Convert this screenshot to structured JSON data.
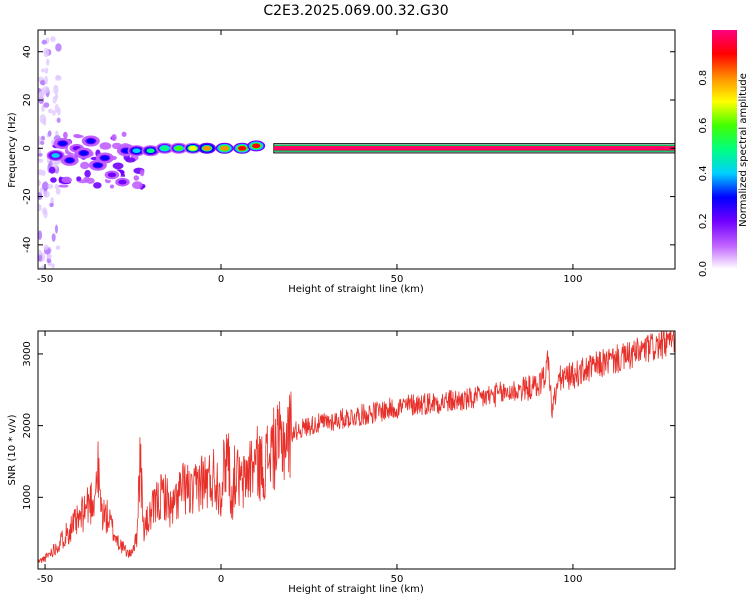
{
  "title": "C2E3.2025.069.00.32.G30",
  "chart_data": [
    {
      "type": "heatmap",
      "xlabel": "Height of straight line (km)",
      "ylabel": "Frequency (Hz)",
      "xlim": [
        -52,
        129
      ],
      "ylim": [
        -50,
        49
      ],
      "xticks": [
        "-50",
        "0",
        "50",
        "100"
      ],
      "xtick_values": [
        -50,
        0,
        50,
        100
      ],
      "yticks": [
        "40",
        "20",
        "0",
        "-20",
        "-40"
      ],
      "ytick_values": [
        40,
        20,
        0,
        -20,
        -40
      ],
      "colorbar": {
        "label": "Normalized spectral amplitude",
        "range": [
          0,
          1
        ],
        "ticks": [
          "0.0",
          "0.2",
          "0.4",
          "0.6",
          "0.8"
        ],
        "tick_values": [
          0,
          0.2,
          0.4,
          0.6,
          0.8
        ],
        "colors": [
          "#ffffff",
          "#c060ff",
          "#7000ff",
          "#0000ff",
          "#00d0ff",
          "#00ff80",
          "#40ff00",
          "#ffff00",
          "#ff9000",
          "#ff0000",
          "#ff0080"
        ]
      },
      "carrier_band": {
        "x_start": 15,
        "x_end": 129,
        "center_hz": 0,
        "amplitude": 1.0
      },
      "clusters": [
        {
          "x": -47,
          "y": -3,
          "amplitude": 0.35
        },
        {
          "x": -45,
          "y": 2,
          "amplitude": 0.25
        },
        {
          "x": -43,
          "y": -5,
          "amplitude": 0.3
        },
        {
          "x": -41,
          "y": 0,
          "amplitude": 0.2
        },
        {
          "x": -39,
          "y": -2,
          "amplitude": 0.3
        },
        {
          "x": -37,
          "y": 3,
          "amplitude": 0.25
        },
        {
          "x": -35,
          "y": -7,
          "amplitude": 0.3
        },
        {
          "x": -33,
          "y": -4,
          "amplitude": 0.25
        },
        {
          "x": -31,
          "y": -11,
          "amplitude": 0.2
        },
        {
          "x": -28,
          "y": -14,
          "amplitude": 0.15
        },
        {
          "x": -27,
          "y": -1,
          "amplitude": 0.25
        },
        {
          "x": -24,
          "y": -1,
          "amplitude": 0.4
        },
        {
          "x": -20,
          "y": -1,
          "amplitude": 0.45
        },
        {
          "x": -16,
          "y": 0,
          "amplitude": 0.5
        },
        {
          "x": -12,
          "y": 0,
          "amplitude": 0.55
        },
        {
          "x": -8,
          "y": 0,
          "amplitude": 0.65
        },
        {
          "x": -4,
          "y": 0,
          "amplitude": 0.75
        },
        {
          "x": 1,
          "y": 0,
          "amplitude": 0.8
        },
        {
          "x": 6,
          "y": 0,
          "amplitude": 0.85
        },
        {
          "x": 10,
          "y": 1,
          "amplitude": 0.9
        }
      ]
    },
    {
      "type": "line",
      "xlabel": "Height of straight line (km)",
      "ylabel": "SNR (10 * v/v)",
      "xlim": [
        -52,
        129
      ],
      "ylim": [
        0,
        3320
      ],
      "xticks": [
        "-50",
        "0",
        "50",
        "100"
      ],
      "xtick_values": [
        -50,
        0,
        50,
        100
      ],
      "yticks": [
        "3000",
        "2000",
        "1000"
      ],
      "ytick_values": [
        3000,
        2000,
        1000
      ],
      "color": "#e8302a",
      "series": [
        {
          "x": [
            -52,
            -50,
            -48,
            -46,
            -44,
            -42,
            -40,
            -38,
            -36,
            -35,
            -34,
            -32,
            -30,
            -28,
            -26,
            -24,
            -23,
            -22,
            -20,
            -18,
            -16,
            -14,
            -12,
            -10,
            -8,
            -6,
            -4,
            -2,
            0,
            1,
            2,
            3,
            4,
            6,
            8,
            10,
            12,
            14,
            16,
            18,
            20,
            25,
            30,
            35,
            40,
            45,
            50,
            55,
            60,
            65,
            70,
            75,
            80,
            85,
            90,
            92,
            93,
            94,
            96,
            100,
            105,
            110,
            115,
            120,
            125,
            129
          ],
          "y": [
            100,
            150,
            250,
            350,
            500,
            600,
            700,
            900,
            1000,
            1400,
            800,
            700,
            450,
            300,
            200,
            400,
            1600,
            550,
            750,
            950,
            1050,
            800,
            1050,
            1150,
            1000,
            1250,
            1200,
            1300,
            1100,
            1450,
            1700,
            900,
            1350,
            1150,
            1400,
            1500,
            1400,
            1650,
            1700,
            1800,
            1900,
            2000,
            2050,
            2100,
            2150,
            2200,
            2250,
            2300,
            2320,
            2340,
            2360,
            2400,
            2450,
            2500,
            2550,
            2700,
            2950,
            2200,
            2650,
            2700,
            2800,
            2900,
            2950,
            3050,
            3130,
            3200
          ]
        }
      ]
    }
  ]
}
